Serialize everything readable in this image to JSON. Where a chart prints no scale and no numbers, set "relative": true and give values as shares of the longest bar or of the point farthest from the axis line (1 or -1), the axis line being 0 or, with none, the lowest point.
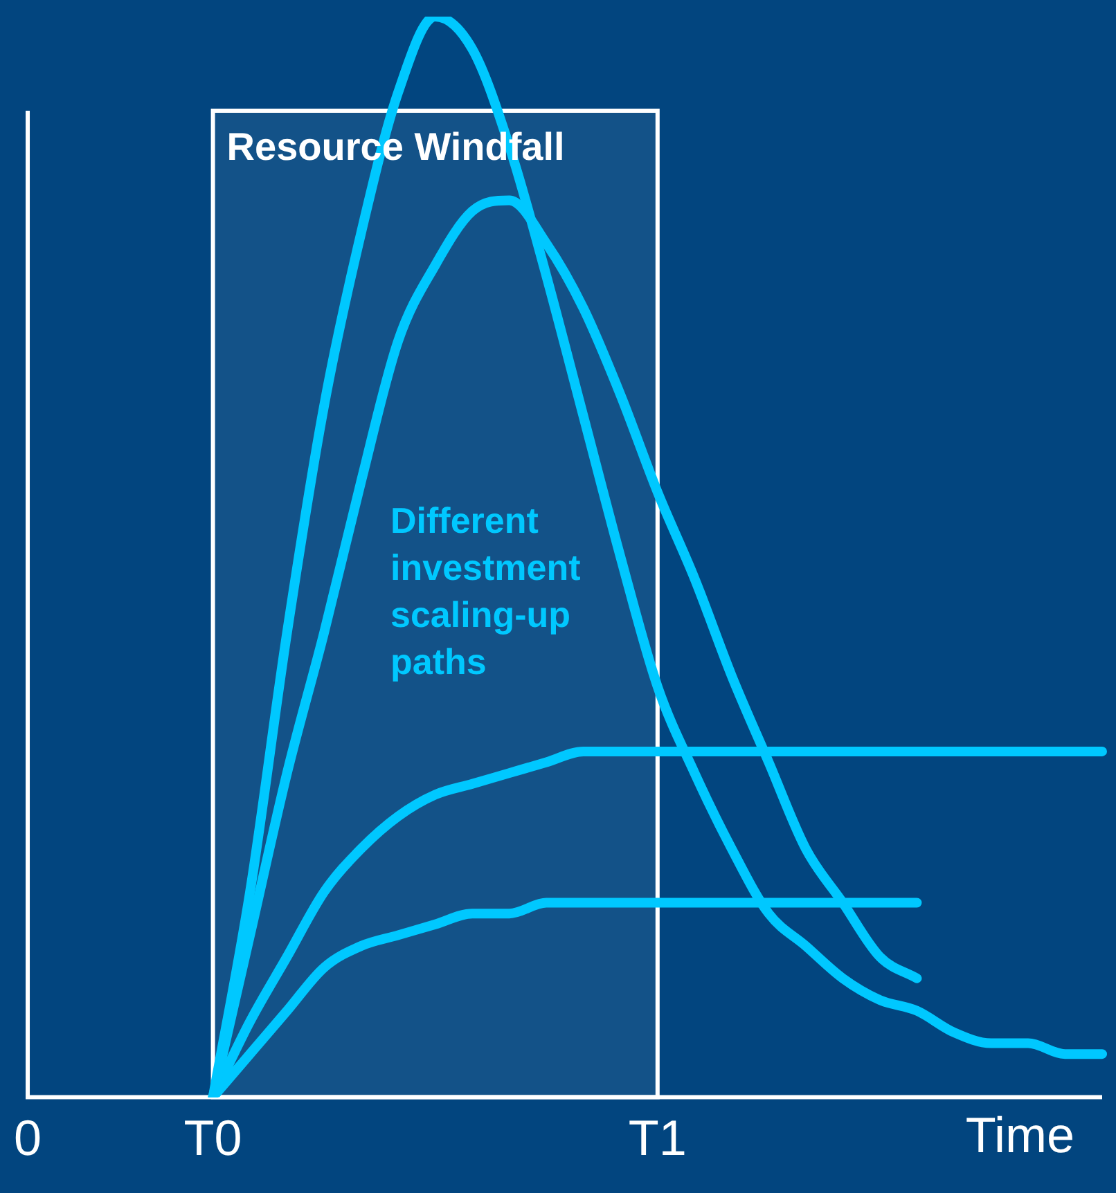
{
  "chart_data": {
    "type": "line",
    "relative": true,
    "xlabel": "Time",
    "categories": [
      "0",
      null,
      null,
      null,
      null,
      "T0",
      null,
      null,
      null,
      null,
      null,
      null,
      null,
      null,
      null,
      null,
      null,
      "T1",
      null,
      null,
      null,
      null,
      null,
      null,
      null,
      null,
      null,
      null,
      null,
      null
    ],
    "grid": false,
    "legend": false,
    "marker": "none",
    "line_style": "solid",
    "bands": [
      {
        "axis": "x",
        "from": "T0",
        "to": "T1",
        "label": "Resource Windfall",
        "color": "#ffffff"
      }
    ],
    "annotations": [
      "Different investment scaling-up paths"
    ],
    "series": [
      {
        "color": "#00c8ff",
        "values": [
          null,
          null,
          null,
          null,
          null,
          0,
          0.19,
          0.43,
          0.64,
          0.8,
          0.93,
          1,
          0.97,
          0.88,
          0.76,
          0.63,
          0.5,
          0.38,
          0.3,
          0.23,
          0.17,
          0.14,
          0.11,
          0.09,
          0.08,
          0.06,
          0.05,
          0.05,
          0.04,
          0.04
        ]
      },
      {
        "color": "#00c8ff",
        "values": [
          null,
          null,
          null,
          null,
          null,
          0,
          0.15,
          0.3,
          0.43,
          0.57,
          0.7,
          0.77,
          0.82,
          0.83,
          0.79,
          0.73,
          0.65,
          0.56,
          0.48,
          0.39,
          0.31,
          0.23,
          0.18,
          0.13,
          0.11,
          null,
          null,
          null,
          null,
          null
        ]
      },
      {
        "color": "#00c8ff",
        "values": [
          null,
          null,
          null,
          null,
          null,
          0,
          0.07,
          0.13,
          0.19,
          0.23,
          0.26,
          0.28,
          0.29,
          0.3,
          0.31,
          0.32,
          0.32,
          0.32,
          0.32,
          0.32,
          0.32,
          0.32,
          0.32,
          0.32,
          0.32,
          0.32,
          0.32,
          0.32,
          0.32,
          0.32
        ]
      },
      {
        "color": "#00c8ff",
        "values": [
          null,
          null,
          null,
          null,
          null,
          0,
          0.04,
          0.08,
          0.12,
          0.14,
          0.15,
          0.16,
          0.17,
          0.17,
          0.18,
          0.18,
          0.18,
          0.18,
          0.18,
          0.18,
          0.18,
          0.18,
          0.18,
          0.18,
          0.18,
          null,
          null,
          null,
          null,
          null
        ]
      }
    ]
  }
}
